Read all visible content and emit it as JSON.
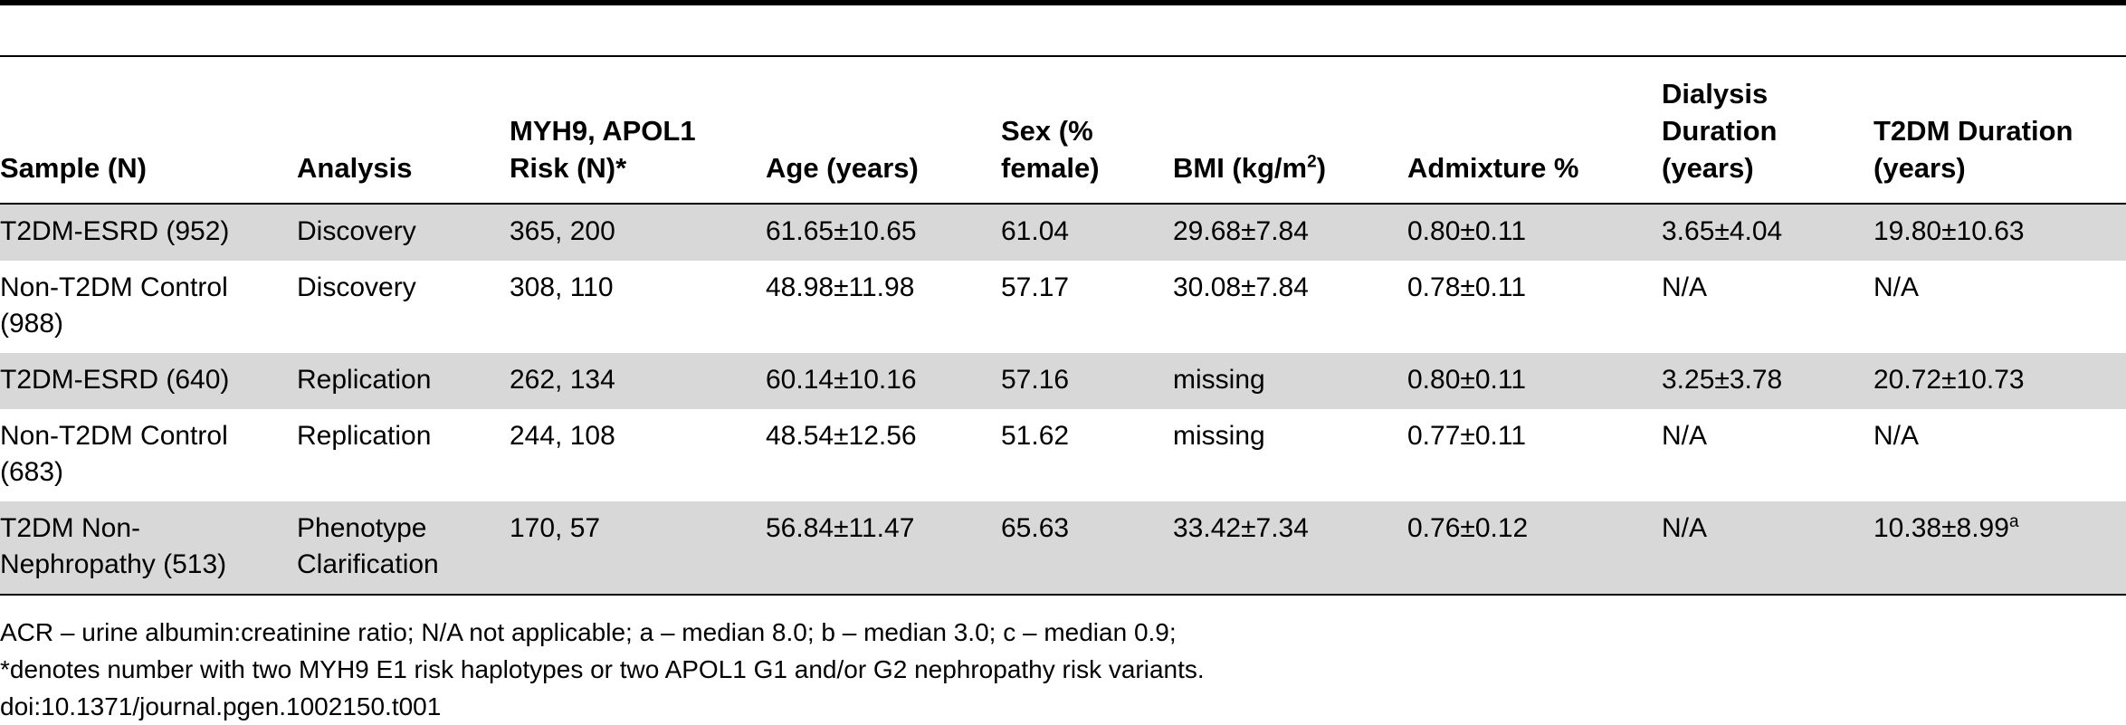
{
  "table": {
    "headers": [
      "Sample (N)",
      "Analysis",
      "MYH9, APOL1\nRisk (N)*",
      "Age (years)",
      "Sex (%\nfemale)",
      "BMI (kg/m",
      "Admixture %",
      "Dialysis\nDuration\n(years)",
      "T2DM Duration\n(years)"
    ],
    "bmi_header_superscript": "2",
    "bmi_header_suffix": ")",
    "rows": [
      [
        "T2DM-ESRD (952)",
        "Discovery",
        "365, 200",
        "61.65±10.65",
        "61.04",
        "29.68±7.84",
        "0.80±0.11",
        "3.65±4.04",
        "19.80±10.63"
      ],
      [
        "Non-T2DM Control\n(988)",
        "Discovery",
        "308, 110",
        "48.98±11.98",
        "57.17",
        "30.08±7.84",
        "0.78±0.11",
        "N/A",
        "N/A"
      ],
      [
        "T2DM-ESRD (640)",
        "Replication",
        "262, 134",
        "60.14±10.16",
        "57.16",
        "missing",
        "0.80±0.11",
        "3.25±3.78",
        "20.72±10.73"
      ],
      [
        "Non-T2DM Control\n(683)",
        "Replication",
        "244, 108",
        "48.54±12.56",
        "51.62",
        "missing",
        "0.77±0.11",
        "N/A",
        "N/A"
      ],
      [
        "T2DM Non-\nNephropathy (513)",
        "Phenotype\nClarification",
        "170, 57",
        "56.84±11.47",
        "65.63",
        "33.42±7.34",
        "0.76±0.12",
        "N/A",
        "10.38±8.99"
      ]
    ],
    "last_row_superscript": "a"
  },
  "footer": {
    "line1": "ACR – urine albumin:creatinine ratio; N/A not applicable; a – median 8.0; b – median 3.0; c – median 0.9;",
    "line2": "*denotes number with two MYH9 E1 risk haplotypes or two APOL1 G1 and/or G2 nephropathy risk variants.",
    "doi": "doi:10.1371/journal.pgen.1002150.t001"
  },
  "colors": {
    "row_shading": "#d8d8d8",
    "rule": "#000000"
  }
}
